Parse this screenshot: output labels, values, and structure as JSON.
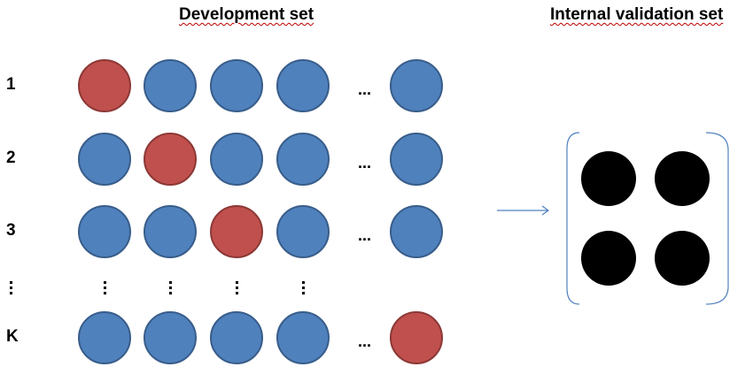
{
  "titles": {
    "development": "Development set",
    "validation": "Internal validation set"
  },
  "rows": [
    {
      "label": "1",
      "pattern": [
        "red",
        "blue",
        "blue",
        "blue",
        "blue"
      ]
    },
    {
      "label": "2",
      "pattern": [
        "blue",
        "red",
        "blue",
        "blue",
        "blue"
      ]
    },
    {
      "label": "3",
      "pattern": [
        "blue",
        "blue",
        "red",
        "blue",
        "blue"
      ]
    },
    {
      "label": "K",
      "pattern": [
        "blue",
        "blue",
        "blue",
        "blue",
        "red"
      ]
    }
  ],
  "ellipsis_text": "...",
  "vertical_ellipsis_label": "⋮",
  "validation_dots": 4,
  "colors": {
    "blue_fill": "#4f81bd",
    "blue_border": "#385d8a",
    "red_fill": "#c0504d",
    "red_border": "#8c3836",
    "validation_fill": "#000000",
    "arrow": "#4f81bd",
    "bracket": "#4f81bd"
  }
}
